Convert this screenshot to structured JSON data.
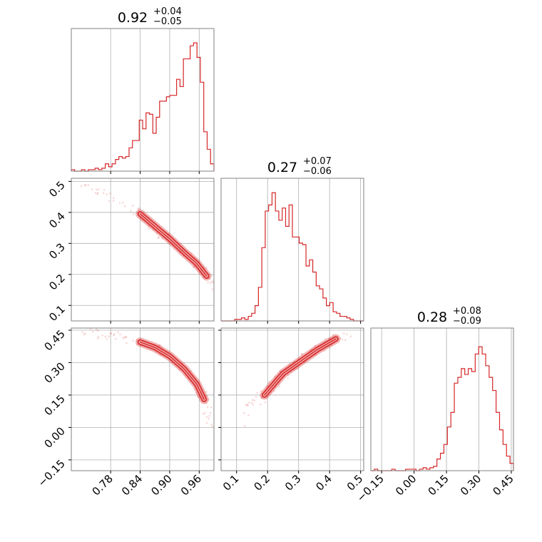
{
  "chart_data": {
    "type": "corner",
    "color": "#d62728",
    "grid": true,
    "parameters": [
      {
        "title_median": "0.92",
        "title_plus": "+0.04",
        "title_minus": "−0.05",
        "range": [
          0.7,
          0.99
        ],
        "ticks": [
          0.78,
          0.84,
          0.9,
          0.96
        ],
        "tick_labels": [
          "0.78",
          "0.84",
          "0.90",
          "0.96"
        ],
        "hist_values": [
          1,
          0,
          0,
          1,
          0,
          1,
          1,
          2,
          1,
          2,
          5,
          3,
          5,
          8,
          10,
          9,
          10,
          16,
          21,
          21,
          35,
          29,
          40,
          39,
          26,
          37,
          48,
          48,
          51,
          52,
          52,
          63,
          58,
          77,
          77,
          86,
          88,
          78,
          61,
          27,
          15,
          5
        ],
        "hist_max": 90
      },
      {
        "title_median": "0.27",
        "title_plus": "+0.07",
        "title_minus": "−0.06",
        "range": [
          0.05,
          0.51
        ],
        "ticks": [
          0.1,
          0.2,
          0.3,
          0.4,
          0.5
        ],
        "tick_labels": [
          "0.1",
          "0.2",
          "0.3",
          "0.4",
          "0.5"
        ],
        "hist_values": [
          0,
          0,
          0,
          0,
          1,
          1,
          2,
          1,
          3,
          5,
          10,
          22,
          48,
          72,
          76,
          84,
          72,
          66,
          74,
          62,
          76,
          55,
          55,
          51,
          50,
          36,
          40,
          32,
          23,
          21,
          15,
          10,
          12,
          6,
          5,
          3,
          3,
          2,
          1,
          0,
          0,
          0
        ],
        "hist_max": 86
      },
      {
        "title_median": "0.28",
        "title_plus": "+0.08",
        "title_minus": "−0.09",
        "range": [
          -0.2,
          0.46
        ],
        "ticks": [
          -0.15,
          0.0,
          0.15,
          0.3,
          0.45
        ],
        "tick_labels": [
          "−0.15",
          "0.00",
          "0.15",
          "0.30",
          "0.45"
        ],
        "hist_values": [
          0,
          1,
          0,
          0,
          0,
          0,
          1,
          0,
          0,
          0,
          1,
          1,
          1,
          0,
          1,
          2,
          1,
          2,
          3,
          8,
          12,
          18,
          30,
          40,
          60,
          64,
          70,
          66,
          70,
          68,
          80,
          85,
          80,
          72,
          64,
          55,
          40,
          28,
          18,
          10,
          5
        ],
        "hist_max": 90
      }
    ],
    "pairs": [
      {
        "x_param": 0,
        "y_param": 1,
        "y_ticks": [
          0.1,
          0.2,
          0.3,
          0.4,
          0.5
        ],
        "y_tick_labels": [
          "0.1",
          "0.2",
          "0.3",
          "0.4",
          "0.5"
        ],
        "ridge": [
          [
            0.72,
            0.49
          ],
          [
            0.78,
            0.45
          ],
          [
            0.84,
            0.395
          ],
          [
            0.87,
            0.355
          ],
          [
            0.9,
            0.315
          ],
          [
            0.93,
            0.27
          ],
          [
            0.955,
            0.235
          ],
          [
            0.975,
            0.195
          ],
          [
            0.985,
            0.16
          ]
        ]
      },
      {
        "x_param": 0,
        "y_param": 2,
        "y_ticks": [
          -0.15,
          0.0,
          0.15,
          0.3,
          0.45
        ],
        "y_tick_labels": [
          "−0.15",
          "0.00",
          "0.15",
          "0.30",
          "0.45"
        ],
        "ridge": [
          [
            0.72,
            0.44
          ],
          [
            0.78,
            0.425
          ],
          [
            0.84,
            0.395
          ],
          [
            0.87,
            0.37
          ],
          [
            0.9,
            0.33
          ],
          [
            0.93,
            0.27
          ],
          [
            0.955,
            0.2
          ],
          [
            0.97,
            0.13
          ],
          [
            0.985,
            0.0
          ]
        ]
      },
      {
        "x_param": 1,
        "y_param": 2,
        "y_ticks": [
          -0.15,
          0.0,
          0.15,
          0.3,
          0.45
        ],
        "y_tick_labels": [
          "",
          "",
          "",
          "",
          ""
        ],
        "ridge": [
          [
            0.1,
            0.0
          ],
          [
            0.15,
            0.1
          ],
          [
            0.19,
            0.15
          ],
          [
            0.22,
            0.2
          ],
          [
            0.25,
            0.25
          ],
          [
            0.3,
            0.3
          ],
          [
            0.36,
            0.36
          ],
          [
            0.42,
            0.41
          ],
          [
            0.47,
            0.43
          ]
        ]
      }
    ]
  }
}
